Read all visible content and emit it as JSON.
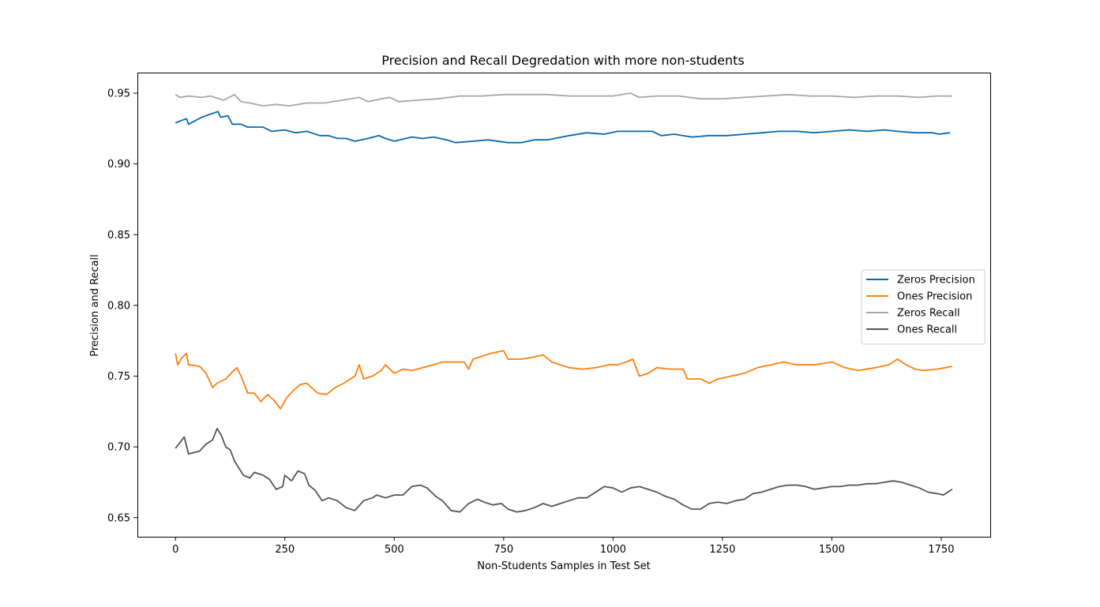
{
  "chart_data": {
    "type": "line",
    "title": "Precision and Recall Degredation with more non-students",
    "xlabel": "Non-Students Samples in Test Set",
    "ylabel": "Precision and Recall",
    "xlim": [
      -87,
      1862
    ],
    "ylim": [
      0.6365,
      0.9645
    ],
    "xticks": [
      0,
      250,
      500,
      750,
      1000,
      1250,
      1500,
      1750
    ],
    "yticks": [
      0.65,
      0.7,
      0.75,
      0.8,
      0.85,
      0.9,
      0.95
    ],
    "ytick_labels": [
      "0.65",
      "0.70",
      "0.75",
      "0.80",
      "0.85",
      "0.90",
      "0.95"
    ],
    "grid": false,
    "legend_position": "center-right",
    "series": [
      {
        "name": "Zeros Precision",
        "color": "#0868ac",
        "points": [
          [
            0,
            0.929
          ],
          [
            25,
            0.932
          ],
          [
            30,
            0.928
          ],
          [
            60,
            0.933
          ],
          [
            97,
            0.937
          ],
          [
            103,
            0.933
          ],
          [
            120,
            0.934
          ],
          [
            130,
            0.928
          ],
          [
            150,
            0.928
          ],
          [
            165,
            0.926
          ],
          [
            200,
            0.926
          ],
          [
            220,
            0.923
          ],
          [
            250,
            0.924
          ],
          [
            275,
            0.922
          ],
          [
            300,
            0.923
          ],
          [
            330,
            0.92
          ],
          [
            350,
            0.92
          ],
          [
            370,
            0.918
          ],
          [
            390,
            0.918
          ],
          [
            410,
            0.916
          ],
          [
            440,
            0.918
          ],
          [
            465,
            0.92
          ],
          [
            480,
            0.918
          ],
          [
            500,
            0.916
          ],
          [
            540,
            0.919
          ],
          [
            565,
            0.918
          ],
          [
            590,
            0.919
          ],
          [
            620,
            0.917
          ],
          [
            640,
            0.915
          ],
          [
            680,
            0.916
          ],
          [
            715,
            0.917
          ],
          [
            760,
            0.915
          ],
          [
            790,
            0.915
          ],
          [
            820,
            0.917
          ],
          [
            850,
            0.917
          ],
          [
            900,
            0.92
          ],
          [
            940,
            0.922
          ],
          [
            980,
            0.921
          ],
          [
            1010,
            0.923
          ],
          [
            1040,
            0.923
          ],
          [
            1070,
            0.923
          ],
          [
            1090,
            0.923
          ],
          [
            1110,
            0.92
          ],
          [
            1140,
            0.921
          ],
          [
            1180,
            0.919
          ],
          [
            1220,
            0.92
          ],
          [
            1260,
            0.92
          ],
          [
            1300,
            0.921
          ],
          [
            1340,
            0.922
          ],
          [
            1380,
            0.923
          ],
          [
            1420,
            0.923
          ],
          [
            1460,
            0.922
          ],
          [
            1500,
            0.923
          ],
          [
            1540,
            0.924
          ],
          [
            1580,
            0.923
          ],
          [
            1620,
            0.924
          ],
          [
            1650,
            0.923
          ],
          [
            1690,
            0.922
          ],
          [
            1730,
            0.922
          ],
          [
            1745,
            0.921
          ],
          [
            1770,
            0.922
          ]
        ]
      },
      {
        "name": "Ones Precision",
        "color": "#ff7f0e",
        "points": [
          [
            0,
            0.766
          ],
          [
            5,
            0.758
          ],
          [
            15,
            0.763
          ],
          [
            25,
            0.766
          ],
          [
            30,
            0.758
          ],
          [
            55,
            0.757
          ],
          [
            70,
            0.752
          ],
          [
            85,
            0.742
          ],
          [
            95,
            0.745
          ],
          [
            115,
            0.748
          ],
          [
            130,
            0.753
          ],
          [
            140,
            0.756
          ],
          [
            150,
            0.75
          ],
          [
            165,
            0.738
          ],
          [
            180,
            0.738
          ],
          [
            195,
            0.732
          ],
          [
            210,
            0.737
          ],
          [
            225,
            0.733
          ],
          [
            240,
            0.727
          ],
          [
            255,
            0.735
          ],
          [
            270,
            0.74
          ],
          [
            285,
            0.744
          ],
          [
            300,
            0.745
          ],
          [
            325,
            0.738
          ],
          [
            345,
            0.737
          ],
          [
            365,
            0.742
          ],
          [
            385,
            0.745
          ],
          [
            410,
            0.75
          ],
          [
            420,
            0.758
          ],
          [
            430,
            0.748
          ],
          [
            450,
            0.75
          ],
          [
            470,
            0.754
          ],
          [
            480,
            0.758
          ],
          [
            500,
            0.752
          ],
          [
            520,
            0.755
          ],
          [
            540,
            0.754
          ],
          [
            565,
            0.756
          ],
          [
            590,
            0.758
          ],
          [
            610,
            0.76
          ],
          [
            630,
            0.76
          ],
          [
            660,
            0.76
          ],
          [
            670,
            0.755
          ],
          [
            680,
            0.762
          ],
          [
            700,
            0.764
          ],
          [
            720,
            0.766
          ],
          [
            750,
            0.768
          ],
          [
            760,
            0.762
          ],
          [
            790,
            0.762
          ],
          [
            810,
            0.763
          ],
          [
            840,
            0.765
          ],
          [
            860,
            0.76
          ],
          [
            880,
            0.758
          ],
          [
            900,
            0.756
          ],
          [
            930,
            0.755
          ],
          [
            960,
            0.756
          ],
          [
            990,
            0.758
          ],
          [
            1010,
            0.758
          ],
          [
            1030,
            0.76
          ],
          [
            1045,
            0.762
          ],
          [
            1060,
            0.75
          ],
          [
            1080,
            0.752
          ],
          [
            1100,
            0.756
          ],
          [
            1130,
            0.755
          ],
          [
            1160,
            0.755
          ],
          [
            1170,
            0.748
          ],
          [
            1200,
            0.748
          ],
          [
            1220,
            0.745
          ],
          [
            1240,
            0.748
          ],
          [
            1270,
            0.75
          ],
          [
            1300,
            0.752
          ],
          [
            1330,
            0.756
          ],
          [
            1360,
            0.758
          ],
          [
            1390,
            0.76
          ],
          [
            1420,
            0.758
          ],
          [
            1460,
            0.758
          ],
          [
            1500,
            0.76
          ],
          [
            1530,
            0.756
          ],
          [
            1560,
            0.754
          ],
          [
            1600,
            0.756
          ],
          [
            1630,
            0.758
          ],
          [
            1650,
            0.762
          ],
          [
            1670,
            0.758
          ],
          [
            1690,
            0.755
          ],
          [
            1710,
            0.754
          ],
          [
            1740,
            0.755
          ],
          [
            1760,
            0.756
          ],
          [
            1775,
            0.757
          ]
        ]
      },
      {
        "name": "Zeros Recall",
        "color": "#a6a6a6",
        "points": [
          [
            0,
            0.949
          ],
          [
            10,
            0.947
          ],
          [
            30,
            0.948
          ],
          [
            60,
            0.947
          ],
          [
            80,
            0.948
          ],
          [
            110,
            0.945
          ],
          [
            135,
            0.949
          ],
          [
            150,
            0.944
          ],
          [
            170,
            0.943
          ],
          [
            200,
            0.941
          ],
          [
            230,
            0.942
          ],
          [
            260,
            0.941
          ],
          [
            300,
            0.943
          ],
          [
            340,
            0.943
          ],
          [
            380,
            0.945
          ],
          [
            420,
            0.947
          ],
          [
            440,
            0.944
          ],
          [
            470,
            0.946
          ],
          [
            490,
            0.947
          ],
          [
            510,
            0.944
          ],
          [
            550,
            0.945
          ],
          [
            600,
            0.946
          ],
          [
            650,
            0.948
          ],
          [
            700,
            0.948
          ],
          [
            750,
            0.949
          ],
          [
            800,
            0.949
          ],
          [
            850,
            0.949
          ],
          [
            900,
            0.948
          ],
          [
            950,
            0.948
          ],
          [
            1000,
            0.948
          ],
          [
            1040,
            0.95
          ],
          [
            1060,
            0.947
          ],
          [
            1100,
            0.948
          ],
          [
            1150,
            0.948
          ],
          [
            1200,
            0.946
          ],
          [
            1250,
            0.946
          ],
          [
            1300,
            0.947
          ],
          [
            1350,
            0.948
          ],
          [
            1400,
            0.949
          ],
          [
            1450,
            0.948
          ],
          [
            1500,
            0.948
          ],
          [
            1550,
            0.947
          ],
          [
            1600,
            0.948
          ],
          [
            1650,
            0.948
          ],
          [
            1700,
            0.947
          ],
          [
            1740,
            0.948
          ],
          [
            1775,
            0.948
          ]
        ]
      },
      {
        "name": "Ones Recall",
        "color": "#555555",
        "points": [
          [
            0,
            0.699
          ],
          [
            10,
            0.703
          ],
          [
            20,
            0.707
          ],
          [
            30,
            0.695
          ],
          [
            55,
            0.697
          ],
          [
            70,
            0.702
          ],
          [
            85,
            0.705
          ],
          [
            95,
            0.713
          ],
          [
            105,
            0.708
          ],
          [
            115,
            0.7
          ],
          [
            125,
            0.698
          ],
          [
            135,
            0.69
          ],
          [
            145,
            0.685
          ],
          [
            155,
            0.68
          ],
          [
            170,
            0.678
          ],
          [
            180,
            0.682
          ],
          [
            200,
            0.68
          ],
          [
            215,
            0.677
          ],
          [
            230,
            0.67
          ],
          [
            245,
            0.672
          ],
          [
            250,
            0.68
          ],
          [
            265,
            0.676
          ],
          [
            280,
            0.683
          ],
          [
            295,
            0.681
          ],
          [
            305,
            0.673
          ],
          [
            320,
            0.669
          ],
          [
            335,
            0.662
          ],
          [
            350,
            0.664
          ],
          [
            370,
            0.662
          ],
          [
            390,
            0.657
          ],
          [
            410,
            0.655
          ],
          [
            430,
            0.662
          ],
          [
            450,
            0.664
          ],
          [
            460,
            0.666
          ],
          [
            480,
            0.664
          ],
          [
            500,
            0.666
          ],
          [
            520,
            0.666
          ],
          [
            540,
            0.672
          ],
          [
            560,
            0.673
          ],
          [
            575,
            0.671
          ],
          [
            595,
            0.665
          ],
          [
            610,
            0.662
          ],
          [
            630,
            0.655
          ],
          [
            650,
            0.654
          ],
          [
            670,
            0.66
          ],
          [
            690,
            0.663
          ],
          [
            705,
            0.661
          ],
          [
            725,
            0.659
          ],
          [
            745,
            0.66
          ],
          [
            760,
            0.656
          ],
          [
            780,
            0.654
          ],
          [
            800,
            0.655
          ],
          [
            820,
            0.657
          ],
          [
            840,
            0.66
          ],
          [
            860,
            0.658
          ],
          [
            880,
            0.66
          ],
          [
            900,
            0.662
          ],
          [
            920,
            0.664
          ],
          [
            940,
            0.664
          ],
          [
            960,
            0.668
          ],
          [
            980,
            0.672
          ],
          [
            1000,
            0.671
          ],
          [
            1020,
            0.668
          ],
          [
            1040,
            0.671
          ],
          [
            1060,
            0.672
          ],
          [
            1080,
            0.67
          ],
          [
            1100,
            0.668
          ],
          [
            1120,
            0.665
          ],
          [
            1140,
            0.663
          ],
          [
            1160,
            0.659
          ],
          [
            1180,
            0.656
          ],
          [
            1200,
            0.656
          ],
          [
            1220,
            0.66
          ],
          [
            1240,
            0.661
          ],
          [
            1260,
            0.66
          ],
          [
            1280,
            0.662
          ],
          [
            1300,
            0.663
          ],
          [
            1320,
            0.667
          ],
          [
            1340,
            0.668
          ],
          [
            1360,
            0.67
          ],
          [
            1380,
            0.672
          ],
          [
            1400,
            0.673
          ],
          [
            1420,
            0.673
          ],
          [
            1440,
            0.672
          ],
          [
            1460,
            0.67
          ],
          [
            1480,
            0.671
          ],
          [
            1500,
            0.672
          ],
          [
            1520,
            0.672
          ],
          [
            1540,
            0.673
          ],
          [
            1560,
            0.673
          ],
          [
            1580,
            0.674
          ],
          [
            1600,
            0.674
          ],
          [
            1620,
            0.675
          ],
          [
            1640,
            0.676
          ],
          [
            1660,
            0.675
          ],
          [
            1680,
            0.673
          ],
          [
            1700,
            0.671
          ],
          [
            1720,
            0.668
          ],
          [
            1740,
            0.667
          ],
          [
            1755,
            0.666
          ],
          [
            1775,
            0.67
          ]
        ]
      }
    ]
  }
}
